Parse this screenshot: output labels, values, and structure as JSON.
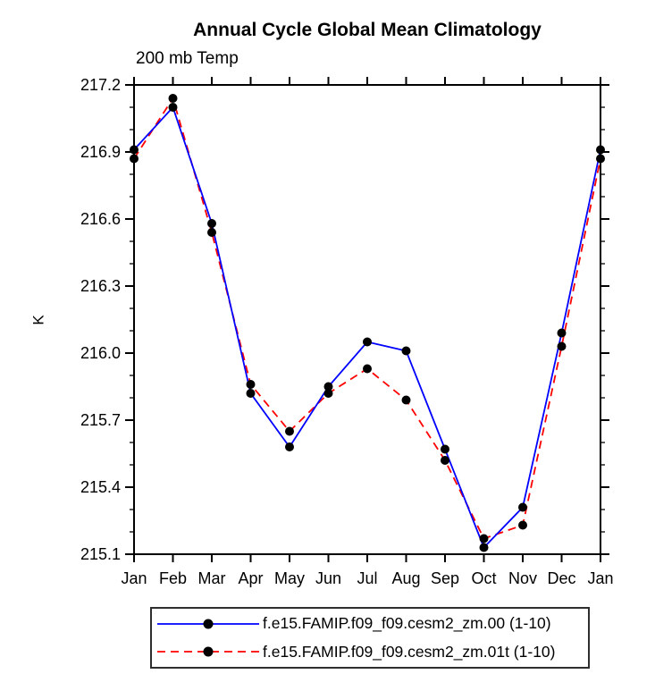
{
  "title": "Annual Cycle Global Mean Climatology",
  "subtitle": "200 mb Temp",
  "ylabel": "K",
  "chart_data": {
    "type": "line",
    "categories": [
      "Jan",
      "Feb",
      "Mar",
      "Apr",
      "May",
      "Jun",
      "Jul",
      "Aug",
      "Sep",
      "Oct",
      "Nov",
      "Dec",
      "Jan"
    ],
    "series": [
      {
        "name": "f.e15.FAMIP.f09_f09.cesm2_zm.00 (1-10)",
        "color": "#0000ff",
        "style": "solid",
        "values": [
          216.91,
          217.1,
          216.58,
          215.82,
          215.58,
          215.85,
          216.05,
          216.01,
          215.57,
          215.13,
          215.31,
          216.09,
          216.91
        ]
      },
      {
        "name": "f.e15.FAMIP.f09_f09.cesm2_zm.01t (1-10)",
        "color": "#ff0000",
        "style": "dashed",
        "values": [
          216.87,
          217.14,
          216.54,
          215.86,
          215.65,
          215.82,
          215.93,
          215.79,
          215.52,
          215.17,
          215.23,
          216.03,
          216.87
        ]
      }
    ],
    "marker": "circle",
    "marker_color": "#000000",
    "ylim": [
      215.1,
      217.2
    ],
    "ytick_major_step": 0.3,
    "ytick_minor_step": 0.1,
    "ytick_labels": [
      "217.2",
      "216.9",
      "216.6",
      "216.3",
      "216.0",
      "215.7",
      "215.4",
      "215.1"
    ],
    "axis_color": "#000000",
    "grid": false,
    "legend_position": "bottom"
  }
}
